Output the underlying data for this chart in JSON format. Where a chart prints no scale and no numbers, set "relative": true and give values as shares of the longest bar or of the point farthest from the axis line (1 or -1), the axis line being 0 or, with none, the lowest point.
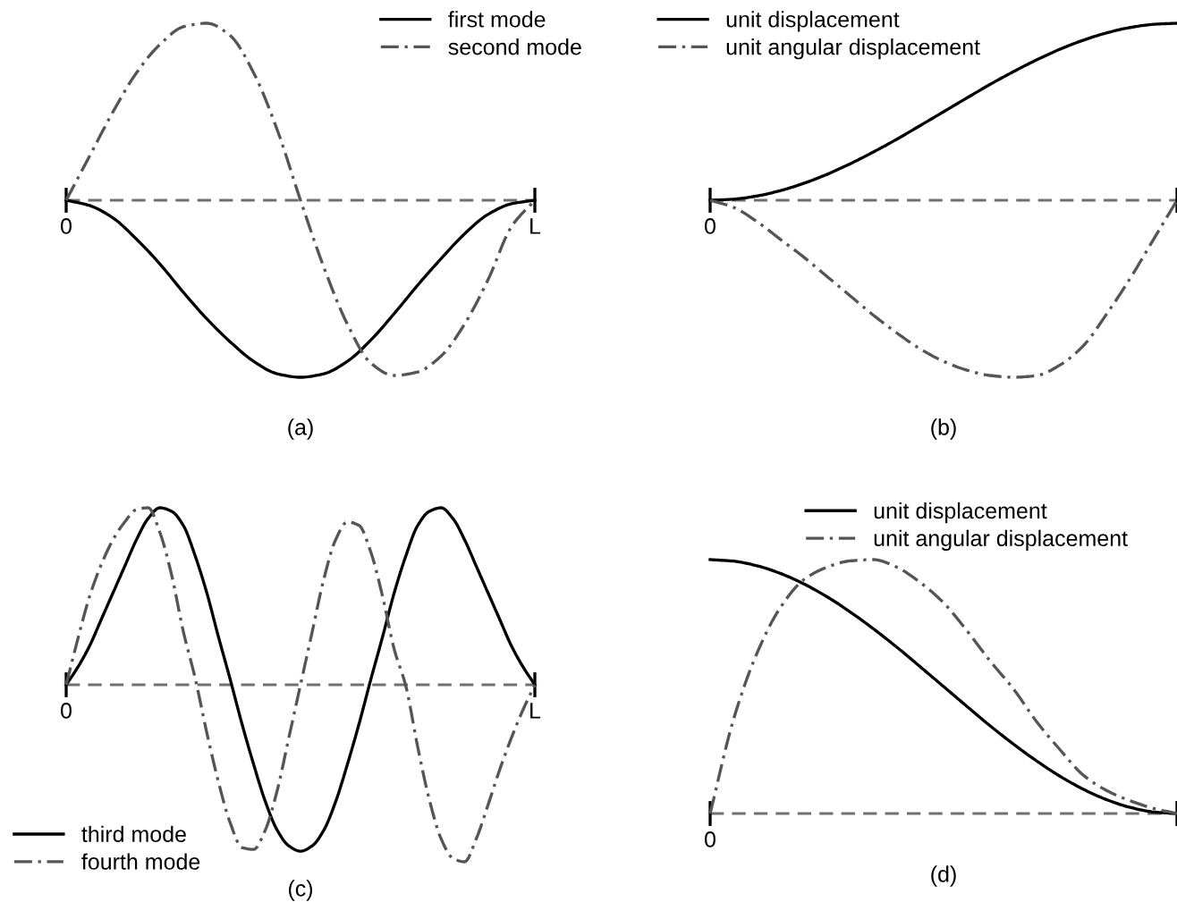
{
  "chart_data": [
    {
      "type": "line",
      "relative": true,
      "xlabel": "(a)",
      "legend": "top right",
      "ref_lines": [
        {
          "axis": "y",
          "value": 0,
          "label": null,
          "color": "#707070",
          "line_style": "dashed"
        }
      ],
      "categories": [
        "0",
        null,
        null,
        null,
        null,
        null,
        null,
        null,
        null,
        null,
        null,
        null,
        null,
        null,
        null,
        null,
        null,
        null,
        null,
        null,
        "L"
      ],
      "series": [
        {
          "name": "first mode",
          "color": "#000000",
          "line_style": "solid",
          "values": [
            0,
            -0.03,
            -0.1,
            -0.22,
            -0.36,
            -0.52,
            -0.67,
            -0.8,
            -0.91,
            -0.98,
            -1,
            -0.98,
            -0.91,
            -0.79,
            -0.64,
            -0.48,
            -0.33,
            -0.19,
            -0.08,
            -0.02,
            0
          ]
        },
        {
          "name": "second mode",
          "color": "#555555",
          "line_style": "dashdot",
          "values": [
            0,
            0.25,
            0.5,
            0.72,
            0.88,
            0.98,
            1,
            0.93,
            0.72,
            0.4,
            0,
            -0.38,
            -0.7,
            -0.92,
            -0.99,
            -0.97,
            -0.88,
            -0.7,
            -0.45,
            -0.15,
            0
          ]
        }
      ]
    },
    {
      "type": "line",
      "relative": true,
      "xlabel": "(b)",
      "legend": "top left",
      "annotations": [
        "0"
      ],
      "ref_lines": [
        {
          "axis": "y",
          "value": 0,
          "label": null,
          "color": "#707070",
          "line_style": "dashed"
        }
      ],
      "categories": [
        null,
        null,
        null,
        null,
        null,
        null,
        null,
        null,
        null,
        null,
        null,
        null,
        null,
        null,
        null,
        null,
        null,
        null,
        null,
        null,
        null
      ],
      "series": [
        {
          "name": "unit displacement",
          "color": "#000000",
          "line_style": "solid",
          "values": [
            0,
            0.006,
            0.024,
            0.054,
            0.095,
            0.146,
            0.206,
            0.273,
            0.345,
            0.422,
            0.5,
            0.578,
            0.655,
            0.727,
            0.794,
            0.854,
            0.905,
            0.946,
            0.976,
            0.994,
            1
          ]
        },
        {
          "name": "unit angular displacement",
          "color": "#555555",
          "line_style": "dashdot",
          "values": [
            0,
            -0.04,
            -0.12,
            -0.22,
            -0.32,
            -0.43,
            -0.54,
            -0.65,
            -0.75,
            -0.84,
            -0.91,
            -0.96,
            -0.99,
            -1,
            -0.99,
            -0.93,
            -0.82,
            -0.64,
            -0.44,
            -0.22,
            0
          ]
        }
      ]
    },
    {
      "type": "line",
      "relative": true,
      "xlabel": "(c)",
      "legend": "bottom left",
      "ref_lines": [
        {
          "axis": "y",
          "value": 0,
          "label": null,
          "color": "#707070",
          "line_style": "dashed"
        }
      ],
      "categories": [
        "0",
        null,
        null,
        null,
        null,
        null,
        null,
        null,
        null,
        null,
        null,
        null,
        null,
        null,
        null,
        null,
        null,
        null,
        null,
        null,
        null,
        null,
        null,
        null,
        null,
        null,
        null,
        null,
        null,
        null,
        null,
        null,
        null,
        null,
        null,
        null,
        null,
        null,
        null,
        null,
        "L"
      ],
      "series": [
        {
          "name": "third mode",
          "color": "#000000",
          "line_style": "solid",
          "values": [
            0,
            0.1,
            0.22,
            0.37,
            0.52,
            0.67,
            0.82,
            0.94,
            1,
            0.98,
            0.9,
            0.73,
            0.52,
            0.27,
            0.03,
            -0.22,
            -0.45,
            -0.66,
            -0.82,
            -0.91,
            -0.94,
            -0.91,
            -0.82,
            -0.66,
            -0.45,
            -0.22,
            0.03,
            0.27,
            0.52,
            0.73,
            0.9,
            0.98,
            1,
            0.94,
            0.82,
            0.67,
            0.52,
            0.37,
            0.22,
            0.1,
            0
          ]
        },
        {
          "name": "fourth mode",
          "color": "#555555",
          "line_style": "dashdot",
          "values": [
            0,
            0.26,
            0.5,
            0.68,
            0.82,
            0.92,
            0.99,
            1,
            0.86,
            0.62,
            0.3,
            0.04,
            -0.27,
            -0.55,
            -0.78,
            -0.92,
            -0.93,
            -0.82,
            -0.6,
            -0.3,
            0,
            0.3,
            0.6,
            0.82,
            0.92,
            0.9,
            0.75,
            0.5,
            0.2,
            -0.01,
            -0.35,
            -0.65,
            -0.87,
            -0.98,
            -1,
            -0.87,
            -0.68,
            -0.48,
            -0.3,
            -0.14,
            0
          ]
        }
      ]
    },
    {
      "type": "line",
      "relative": true,
      "xlabel": "(d)",
      "legend": "top",
      "annotations": [
        "0"
      ],
      "ref_lines": [
        {
          "axis": "y",
          "value": 0,
          "label": null,
          "color": "#707070",
          "line_style": "dashed"
        }
      ],
      "categories": [
        null,
        null,
        null,
        null,
        null,
        null,
        null,
        null,
        null,
        null,
        null,
        null,
        null,
        null,
        null,
        null,
        null,
        null,
        null,
        null,
        null
      ],
      "series": [
        {
          "name": "unit displacement",
          "color": "#000000",
          "line_style": "solid",
          "values": [
            1,
            0.994,
            0.976,
            0.946,
            0.905,
            0.854,
            0.794,
            0.727,
            0.655,
            0.578,
            0.5,
            0.422,
            0.345,
            0.273,
            0.206,
            0.146,
            0.095,
            0.054,
            0.024,
            0.006,
            0
          ]
        },
        {
          "name": "unit angular displacement",
          "color": "#555555",
          "line_style": "dashdot",
          "values": [
            0,
            0.37,
            0.63,
            0.81,
            0.92,
            0.97,
            0.995,
            1,
            0.97,
            0.91,
            0.83,
            0.72,
            0.6,
            0.49,
            0.36,
            0.25,
            0.15,
            0.09,
            0.05,
            0.02,
            0
          ]
        }
      ]
    }
  ]
}
